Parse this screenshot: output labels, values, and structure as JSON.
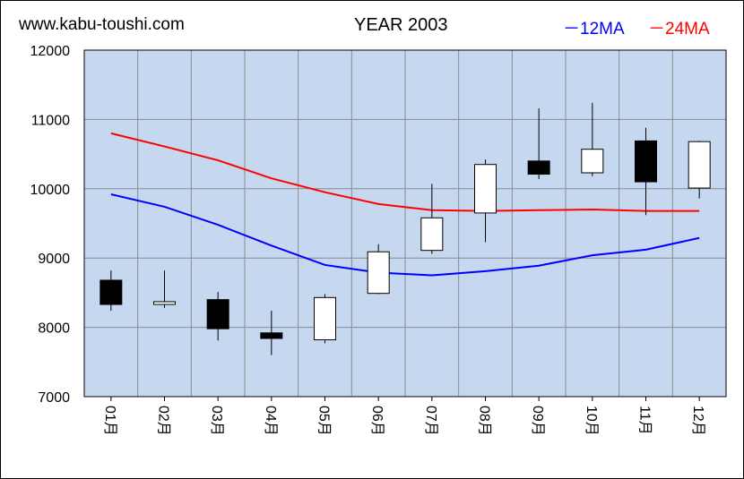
{
  "header": {
    "site": "www.kabu-toushi.com",
    "title": "YEAR 2003",
    "legend_12": "－12MA",
    "legend_24": "－24MA"
  },
  "colors": {
    "plot_bg": "#c6d8f0",
    "ma12": "#0000ff",
    "ma24": "#ff0000",
    "up_candle": "#ffffff",
    "down_candle": "#000000"
  },
  "chart_data": {
    "type": "candlestick",
    "title": "YEAR 2003",
    "categories": [
      "01月",
      "02月",
      "03月",
      "04月",
      "05月",
      "06月",
      "07月",
      "08月",
      "09月",
      "10月",
      "11月",
      "12月"
    ],
    "ylim": [
      7000,
      12000
    ],
    "yticks": [
      7000,
      8000,
      9000,
      10000,
      11000,
      12000
    ],
    "grid": true,
    "ohlc": [
      {
        "open": 8680,
        "high": 8820,
        "low": 8240,
        "close": 8330
      },
      {
        "open": 8330,
        "high": 8820,
        "low": 8280,
        "close": 8370
      },
      {
        "open": 8400,
        "high": 8510,
        "low": 7810,
        "close": 7980
      },
      {
        "open": 7920,
        "high": 8240,
        "low": 7600,
        "close": 7840
      },
      {
        "open": 7820,
        "high": 8480,
        "low": 7770,
        "close": 8430
      },
      {
        "open": 8490,
        "high": 9200,
        "low": 8480,
        "close": 9090
      },
      {
        "open": 9110,
        "high": 10070,
        "low": 9060,
        "close": 9580
      },
      {
        "open": 9650,
        "high": 10420,
        "low": 9230,
        "close": 10350
      },
      {
        "open": 10400,
        "high": 11160,
        "low": 10140,
        "close": 10210
      },
      {
        "open": 10230,
        "high": 11240,
        "low": 10180,
        "close": 10570
      },
      {
        "open": 10690,
        "high": 10880,
        "low": 9620,
        "close": 10100
      },
      {
        "open": 10010,
        "high": 10690,
        "low": 9860,
        "close": 10680
      }
    ],
    "series": [
      {
        "name": "12MA",
        "values": [
          9920,
          9740,
          9480,
          9180,
          8900,
          8790,
          8750,
          8810,
          8890,
          9040,
          9120,
          9290
        ]
      },
      {
        "name": "24MA",
        "values": [
          10800,
          10610,
          10410,
          10150,
          9950,
          9780,
          9690,
          9680,
          9690,
          9700,
          9680,
          9680
        ]
      }
    ]
  }
}
